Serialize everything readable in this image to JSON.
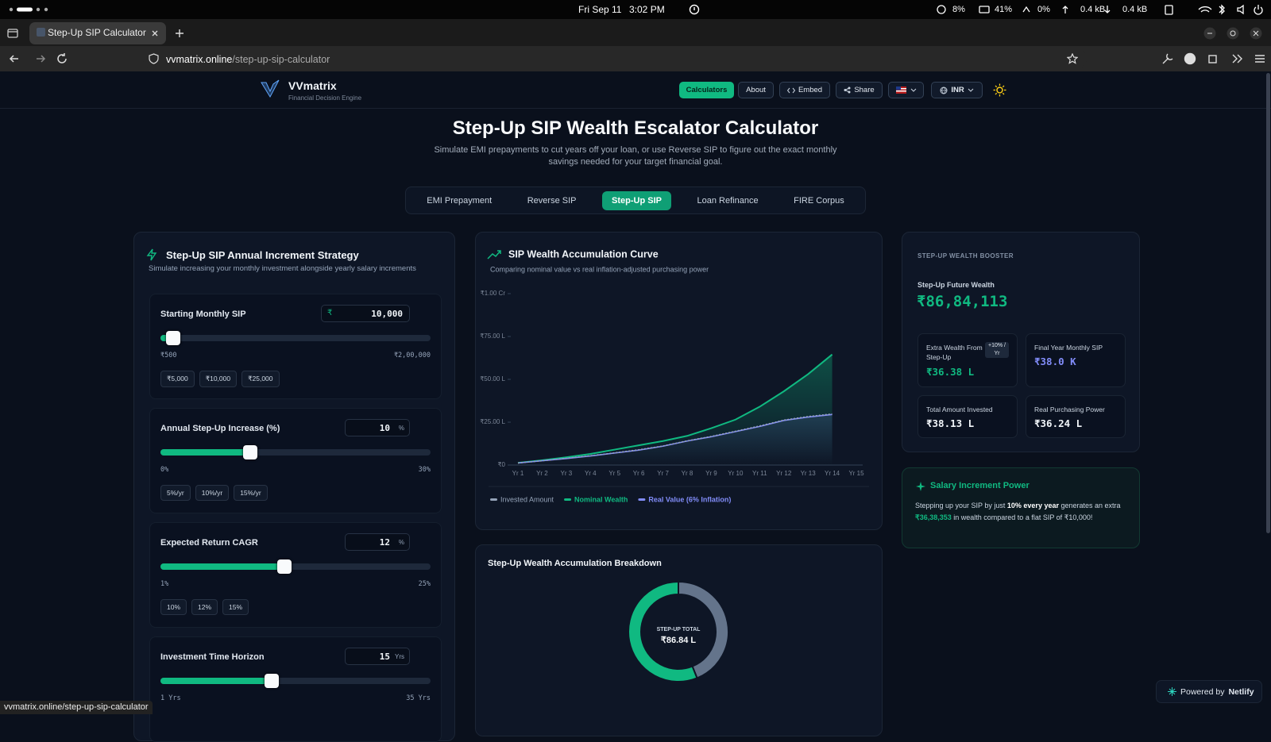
{
  "os_bar": {
    "date": "Fri Sep 11",
    "time": "3:02 PM",
    "cpu": "8%",
    "battery": "41%",
    "swap": "0%",
    "upload": "0.4 kB",
    "download": "0.4 kB"
  },
  "browser": {
    "tab_title": "Step-Up SIP Calculator —",
    "url_host": "vvmatrix.online",
    "url_path": "/step-up-sip-calculator",
    "status_url": "vvmatrix.online/step-up-sip-calculator"
  },
  "nav": {
    "brand": "VVmatrix",
    "tagline": "Financial Decision Engine",
    "buttons": [
      "Calculators",
      "About",
      "Embed",
      "Share"
    ],
    "currency": "INR"
  },
  "hero": {
    "title": "Step-Up SIP Wealth Escalator Calculator",
    "subtitle": "Simulate EMI prepayments to cut years off your loan, or use Reverse SIP to figure out the exact monthly savings needed for your target financial goal."
  },
  "tabs": {
    "items": [
      "EMI Prepayment",
      "Reverse SIP",
      "Step-Up SIP",
      "Loan Refinance",
      "FIRE Corpus"
    ],
    "active": 2
  },
  "strategy": {
    "title": "Step-Up SIP Annual Increment Strategy",
    "subtitle": "Simulate increasing your monthly investment alongside yearly salary increments",
    "inputs": [
      {
        "label": "Starting Monthly SIP",
        "prefix": "₹",
        "value": 10000,
        "value_label": "10,000",
        "min": 500,
        "min_label": "₹500",
        "max": 200000,
        "max_label": "₹2,00,000",
        "presets": [
          "₹5,000",
          "₹10,000",
          "₹25,000"
        ]
      },
      {
        "label": "Annual Step-Up Increase (%)",
        "unit": "%",
        "value": 10,
        "min": 0,
        "min_label": "0%",
        "max": 30,
        "max_label": "30%",
        "presets": [
          "5%/yr",
          "10%/yr",
          "15%/yr"
        ]
      },
      {
        "label": "Expected Return CAGR",
        "unit": "%",
        "value": 12,
        "min": 1,
        "min_label": "1%",
        "max": 25,
        "max_label": "25%",
        "presets": [
          "10%",
          "12%",
          "15%"
        ]
      },
      {
        "label": "Investment Time Horizon",
        "unit": "Yrs",
        "value": 15,
        "min": 1,
        "min_label": "1 Yrs",
        "max": 35,
        "max_label": "35 Yrs",
        "presets": []
      }
    ]
  },
  "booster": {
    "heading": "STEP-UP WEALTH BOOSTER",
    "label": "Step-Up Future Wealth",
    "value": "₹86,84,113",
    "stats": [
      {
        "label": "Extra Wealth From Step-Up",
        "badge": "+10% / Yr",
        "value": "₹36.38 L"
      },
      {
        "label": "Final Year Monthly SIP",
        "value": "₹38.0 K"
      },
      {
        "label": "Total Amount Invested",
        "value": "₹38.13 L"
      },
      {
        "label": "Real Purchasing Power",
        "value": "₹36.24 L"
      }
    ]
  },
  "salary": {
    "title": "Salary Increment Power",
    "text_before": "Stepping up your SIP by just ",
    "highlight": "10% every year",
    "text_mid": " generates an extra ",
    "amount": "₹36,38,353",
    "text_after": " in wealth compared to a flat SIP of ₹10,000!"
  },
  "footer": {
    "powered_by": "Powered by",
    "provider": "Netlify"
  },
  "chart_data": [
    {
      "type": "line",
      "title": "SIP Wealth Accumulation Curve",
      "subtitle": "Comparing nominal value vs real inflation-adjusted purchasing power",
      "categories": [
        "Yr 1",
        "Yr 2",
        "Yr 3",
        "Yr 4",
        "Yr 5",
        "Yr 6",
        "Yr 7",
        "Yr 8",
        "Yr 9",
        "Yr 10",
        "Yr 11",
        "Yr 12",
        "Yr 13",
        "Yr 14",
        "Yr 15"
      ],
      "ylim": [
        0,
        10000000
      ],
      "yticks": [
        {
          "value": 0,
          "label": "₹0"
        },
        {
          "value": 2500000,
          "label": "₹25.00 L"
        },
        {
          "value": 5000000,
          "label": "₹50.00 L"
        },
        {
          "value": 7500000,
          "label": "₹75.00 L"
        },
        {
          "value": 10000000,
          "label": "₹1.00 Cr"
        }
      ],
      "grid": false,
      "series": [
        {
          "name": "Invested Amount",
          "color": "#94a3b8",
          "values": [
            120000,
            250000,
            390000,
            540000,
            710000,
            890000,
            1110000,
            1410000,
            1670000,
            1970000,
            2280000,
            2620000,
            2830000,
            2980000,
            null
          ]
        },
        {
          "name": "Nominal Wealth",
          "color": "#10b981",
          "values": [
            130000,
            280000,
            450000,
            650000,
            900000,
            1150000,
            1400000,
            1700000,
            2150000,
            2650000,
            3400000,
            4300000,
            5300000,
            6450000,
            null
          ]
        },
        {
          "name": "Real Value (6% Inflation)",
          "color": "#818cf8",
          "values": [
            120000,
            250000,
            380000,
            530000,
            700000,
            870000,
            1100000,
            1400000,
            1650000,
            1950000,
            2250000,
            2600000,
            2800000,
            2950000,
            null
          ]
        }
      ]
    },
    {
      "type": "pie",
      "title": "Step-Up Wealth Accumulation Breakdown",
      "center_label": "STEP-UP TOTAL",
      "center_value": "₹86.84 L",
      "values": [
        3813000,
        4871000
      ],
      "colors": [
        "#64748b",
        "#10b981"
      ]
    }
  ]
}
